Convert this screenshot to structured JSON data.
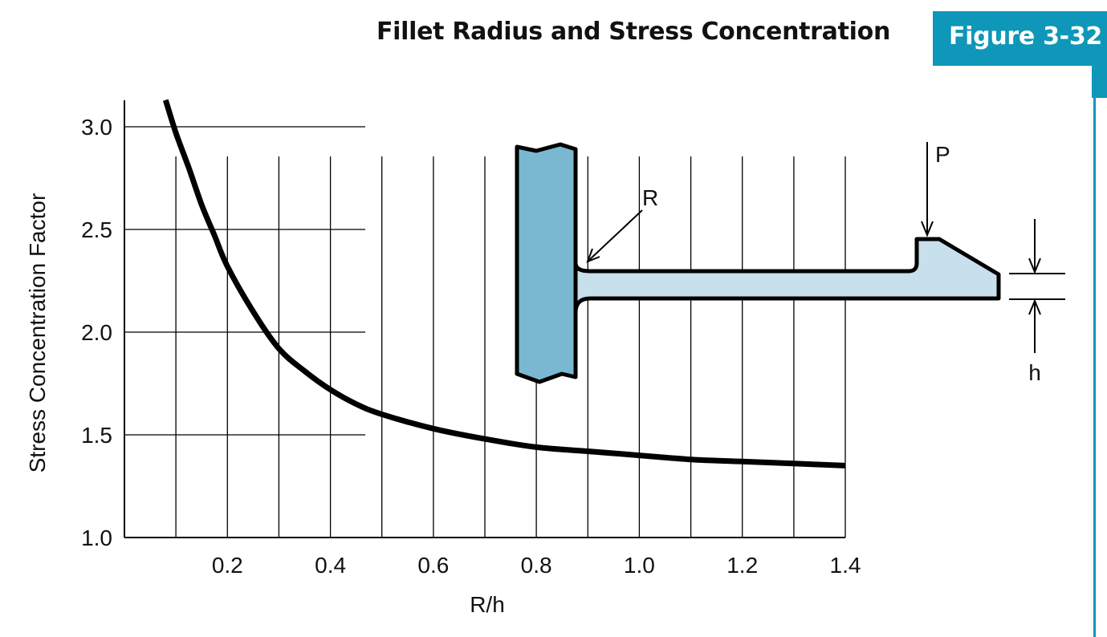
{
  "header": {
    "title": "Fillet Radius and Stress Concentration",
    "figure_label": "Figure 3-32"
  },
  "colors": {
    "accent": "#0e97b8",
    "wall": "#7ab8d2",
    "beam": "#c8e0ec",
    "curve": "#000000"
  },
  "diagram": {
    "radius_label": "R",
    "load_label": "P",
    "thickness_label": "h"
  },
  "chart_data": {
    "type": "line",
    "title": "",
    "xlabel": "R/h",
    "ylabel": "Stress Concentration Factor",
    "xlim": [
      0,
      1.4
    ],
    "ylim": [
      1.0,
      3.0
    ],
    "x_ticks": [
      0.2,
      0.4,
      0.6,
      0.8,
      1.0,
      1.2,
      1.4
    ],
    "x_tick_labels": [
      "0.2",
      "0.4",
      "0.6",
      "0.8",
      "1.0",
      "1.2",
      "1.4"
    ],
    "y_ticks": [
      1.0,
      1.5,
      2.0,
      2.5,
      3.0
    ],
    "y_tick_labels": [
      "1.0",
      "1.5",
      "2.0",
      "2.5",
      "3.0"
    ],
    "x_grid": [
      0.1,
      0.2,
      0.3,
      0.4,
      0.5,
      0.6,
      0.7,
      0.8,
      0.9,
      1.0,
      1.1,
      1.2,
      1.3,
      1.4
    ],
    "grid": true,
    "series": [
      {
        "name": "",
        "x": [
          0.08,
          0.1,
          0.125,
          0.15,
          0.175,
          0.2,
          0.25,
          0.3,
          0.35,
          0.4,
          0.45,
          0.5,
          0.6,
          0.7,
          0.8,
          0.9,
          1.0,
          1.1,
          1.2,
          1.3,
          1.4
        ],
        "y": [
          3.13,
          2.97,
          2.8,
          2.62,
          2.47,
          2.32,
          2.1,
          1.92,
          1.81,
          1.72,
          1.65,
          1.6,
          1.53,
          1.48,
          1.44,
          1.42,
          1.4,
          1.38,
          1.37,
          1.36,
          1.35
        ]
      }
    ]
  }
}
